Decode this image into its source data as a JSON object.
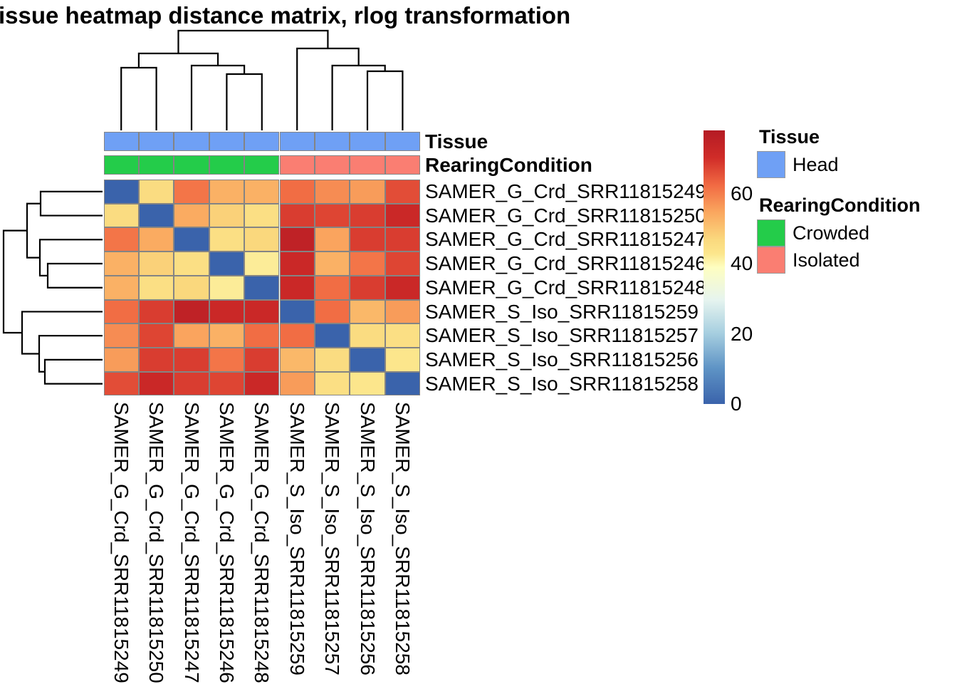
{
  "chart_data": {
    "type": "heatmap",
    "title": "issue heatmap distance matrix, rlog transformation",
    "rows": [
      "SAMER_G_Crd_SRR11815249",
      "SAMER_G_Crd_SRR11815250",
      "SAMER_G_Crd_SRR11815247",
      "SAMER_G_Crd_SRR11815246",
      "SAMER_G_Crd_SRR11815248",
      "SAMER_S_Iso_SRR11815259",
      "SAMER_S_Iso_SRR11815257",
      "SAMER_S_Iso_SRR11815256",
      "SAMER_S_Iso_SRR11815258"
    ],
    "cols": [
      "SAMER_G_Crd_SRR11815249",
      "SAMER_G_Crd_SRR11815250",
      "SAMER_G_Crd_SRR11815247",
      "SAMER_G_Crd_SRR11815246",
      "SAMER_G_Crd_SRR11815248",
      "SAMER_S_Iso_SRR11815259",
      "SAMER_S_Iso_SRR11815257",
      "SAMER_S_Iso_SRR11815256",
      "SAMER_S_Iso_SRR11815258"
    ],
    "matrix": [
      [
        0,
        46,
        61,
        53,
        53,
        62,
        58,
        56,
        66
      ],
      [
        46,
        0,
        54,
        48,
        45,
        68,
        67,
        68,
        72
      ],
      [
        61,
        54,
        0,
        45,
        47,
        75,
        55,
        68,
        68
      ],
      [
        53,
        48,
        45,
        0,
        42,
        72,
        53,
        61,
        67
      ],
      [
        53,
        45,
        47,
        42,
        0,
        72,
        62,
        68,
        72
      ],
      [
        62,
        68,
        75,
        72,
        72,
        0,
        62,
        52,
        56
      ],
      [
        58,
        67,
        55,
        53,
        62,
        62,
        0,
        46,
        45
      ],
      [
        56,
        68,
        68,
        61,
        68,
        52,
        46,
        0,
        43
      ],
      [
        66,
        72,
        68,
        67,
        72,
        56,
        45,
        43,
        0
      ]
    ],
    "scale": {
      "min": 0,
      "max": 78,
      "ticks": [
        0,
        20,
        40,
        60
      ]
    },
    "colormap_stops": [
      [
        0.0,
        "#3A63AB"
      ],
      [
        0.13,
        "#5E93C5"
      ],
      [
        0.26,
        "#A7CFE0"
      ],
      [
        0.38,
        "#E6F4EF"
      ],
      [
        0.5,
        "#FEFEC0"
      ],
      [
        0.55,
        "#FCE68C"
      ],
      [
        0.6,
        "#FAD97E"
      ],
      [
        0.7,
        "#FAA75F"
      ],
      [
        0.8,
        "#F16A43"
      ],
      [
        0.9,
        "#D02C28"
      ],
      [
        1.0,
        "#B41B24"
      ]
    ],
    "annotations": [
      {
        "label": "Tissue",
        "values": [
          "Head",
          "Head",
          "Head",
          "Head",
          "Head",
          "Head",
          "Head",
          "Head",
          "Head"
        ]
      },
      {
        "label": "RearingCondition",
        "values": [
          "Crowded",
          "Crowded",
          "Crowded",
          "Crowded",
          "Crowded",
          "Isolated",
          "Isolated",
          "Isolated",
          "Isolated"
        ]
      }
    ],
    "annotation_colors": {
      "Head": "#6FA0F5",
      "Crowded": "#24CC4A",
      "Isolated": "#FA7E72"
    },
    "col_dendrogram": {
      "leaf_edge": 183,
      "merges": [
        [
          "M1",
          "L4",
          "L5",
          104
        ],
        [
          "M2",
          "L3",
          "M1",
          92
        ],
        [
          "M3",
          "L1",
          "L2",
          95
        ],
        [
          "M4",
          "M3",
          "M2",
          75
        ],
        [
          "M5",
          "L8",
          "L9",
          100
        ],
        [
          "M6",
          "L7",
          "M5",
          92
        ],
        [
          "M7",
          "L6",
          "M6",
          68
        ],
        [
          "M8",
          "M4",
          "M7",
          43
        ]
      ]
    },
    "row_dendrogram": {
      "leaf_edge": 144,
      "merges": [
        [
          "N1",
          "L1",
          "L2",
          57
        ],
        [
          "N2",
          "L4",
          "L5",
          67
        ],
        [
          "N3",
          "L3",
          "N2",
          56
        ],
        [
          "N4",
          "N1",
          "N3",
          38
        ],
        [
          "N5",
          "L8",
          "L9",
          63
        ],
        [
          "N6",
          "L7",
          "N5",
          55
        ],
        [
          "N7",
          "L6",
          "N6",
          31
        ],
        [
          "N8",
          "N4",
          "N7",
          5
        ]
      ]
    },
    "legend_position": "right",
    "grid": "cell-borders-gray"
  },
  "legend": {
    "groups": [
      {
        "title": "Tissue",
        "items": [
          {
            "label": "Head",
            "color": "#6FA0F5"
          }
        ]
      },
      {
        "title": "RearingCondition",
        "items": [
          {
            "label": "Crowded",
            "color": "#24CC4A"
          },
          {
            "label": "Isolated",
            "color": "#FA7E72"
          }
        ]
      }
    ]
  },
  "colors": {
    "cell_border": "#848484",
    "dendrogram_line": "#000000",
    "text": "#000000",
    "background": "#FFFFFF"
  }
}
